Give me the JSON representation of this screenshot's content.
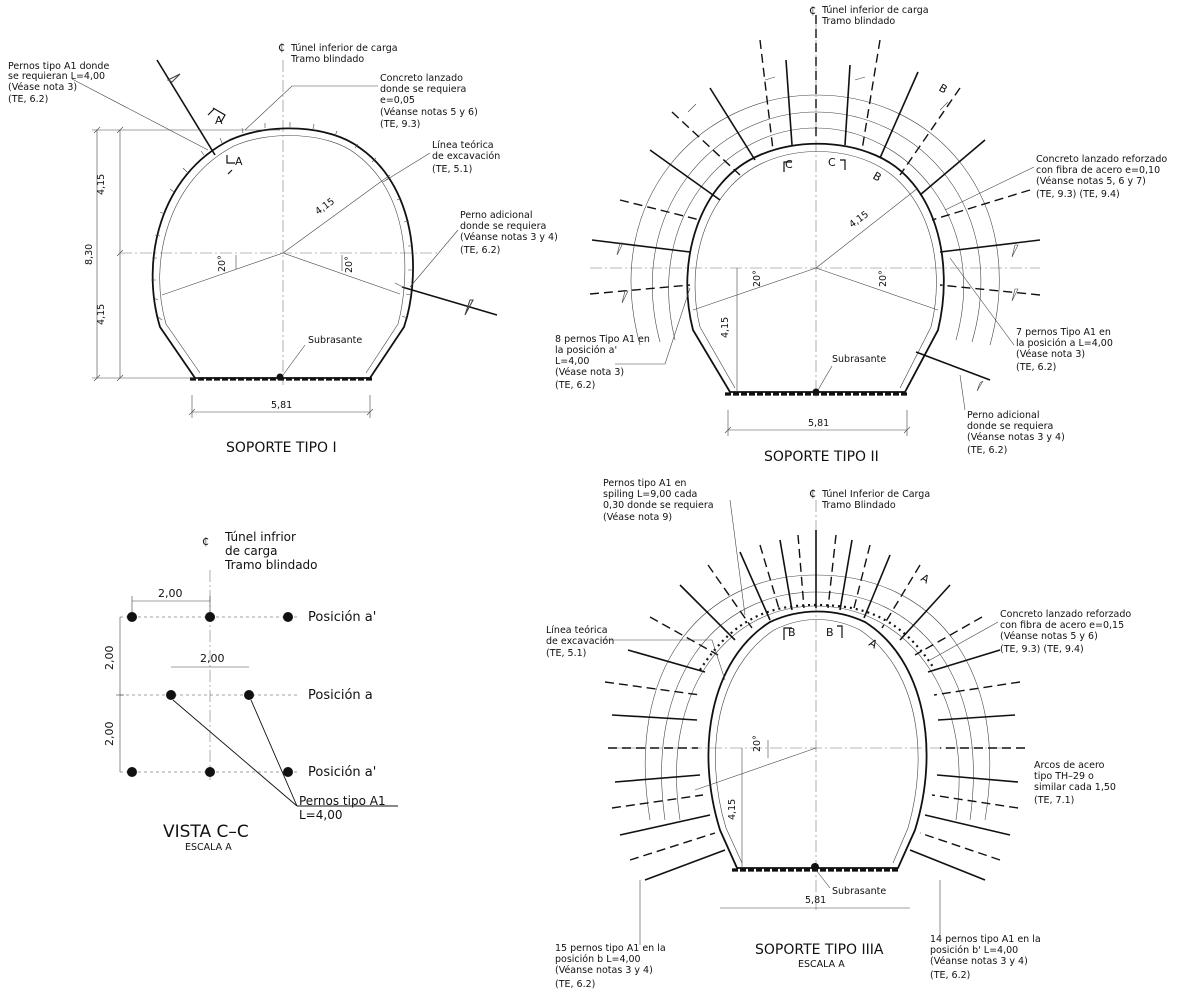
{
  "support_I": {
    "centerline": "Túnel inferior de carga",
    "centerline2": "Tramo blindado",
    "n1": [
      "Pernos tipo A1 donde",
      "se requieran L=4,00",
      "(Véase nota 3)",
      "(TE, 6.2)"
    ],
    "n2": [
      "Concreto lanzado",
      "donde se requiera",
      "e=0,05",
      "(Véanse notas 5 y 6)",
      "(TE, 9.3)"
    ],
    "n3": [
      "Línea teórica",
      "de excavación",
      "(TE, 5.1)"
    ],
    "n4": [
      "Perno adicional",
      "donde se requiera",
      "(Véanse notas 3 y 4)",
      "(TE, 6.2)"
    ],
    "dim_h1": "4,15",
    "dim_h2": "4,15",
    "dim_total": "8,30",
    "radius": "4,15",
    "angle": "20°",
    "width": "5,81",
    "subgrade": "Subrasante",
    "section_a": "A",
    "title": "SOPORTE TIPO I"
  },
  "support_II": {
    "centerline": "Túnel inferior de carga",
    "centerline2": "Tramo blindado",
    "n1": [
      "Concreto lanzado reforzado",
      "con fibra de acero e=0,10",
      "(Véanse notas 5, 6 y 7)",
      "(TE, 9.3) (TE, 9.4)"
    ],
    "n2": [
      "8 pernos Tipo A1 en",
      "la  posición a'",
      "L=4,00",
      "(Véase nota 3)",
      "(TE, 6.2)"
    ],
    "n3": [
      "7 pernos Tipo A1 en",
      "la  posición a L=4,00",
      "(Véase nota 3)",
      "(TE, 6.2)"
    ],
    "n4": [
      "Perno adicional",
      "donde se requiera",
      "(Véanse notas 3 y 4)",
      "(TE, 6.2)"
    ],
    "radius": "4,15",
    "angle": "20°",
    "dim_h": "4,15",
    "width": "5,81",
    "subgrade": "Subrasante",
    "sec_b": "B",
    "sec_c": "C",
    "title": "SOPORTE TIPO II"
  },
  "view_CC": {
    "centerline": "Túnel infrior",
    "centerline2": "de carga",
    "centerline3": "Tramo blindado",
    "dim1": "2,00",
    "dim2": "2,00",
    "dim3": "2,00",
    "dim4": "2,00",
    "pos1": "Posición a'",
    "pos2": "Posición a",
    "pos3": "Posición a'",
    "bolts": [
      "Pernos tipo A1",
      "L=4,00"
    ],
    "title": "VISTA C–C",
    "scale": "ESCALA A"
  },
  "support_IIIA": {
    "centerline": "Túnel Inferior de Carga",
    "centerline2": "Tramo Blindado",
    "n1": [
      "Pernos tipo A1 en",
      "spiling L=9,00 cada",
      "0,30 donde se requiera",
      "(Véase nota 9)"
    ],
    "n2": [
      "Línea teórica",
      "de excavación",
      "(TE, 5.1)"
    ],
    "n3": [
      "Concreto lanzado reforzado",
      "con fibra de acero e=0,15",
      "(Véanse notas 5 y 6)",
      "(TE, 9.3) (TE, 9.4)"
    ],
    "n4": [
      "Arcos de acero",
      "tipo TH–29 o",
      "similar cada 1,50",
      "(TE, 7.1)"
    ],
    "n5": [
      "15 pernos tipo A1 en la",
      "posición b L=4,00",
      "(Véanse notas 3 y 4)",
      "(TE, 6.2)"
    ],
    "n6": [
      "14 pernos tipo A1 en la",
      "posición b' L=4,00",
      "(Véanse notas 3 y 4)",
      "(TE, 6.2)"
    ],
    "angle": "20°",
    "dim_h": "4,15",
    "width": "5,81",
    "subgrade": "Subrasante",
    "sec_a": "A",
    "sec_b": "B",
    "title": "SOPORTE TIPO IIIA",
    "scale": "ESCALA A"
  }
}
